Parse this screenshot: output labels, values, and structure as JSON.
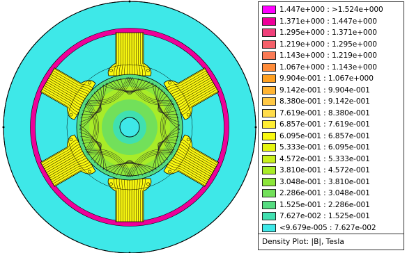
{
  "plot": {
    "bands": [
      {
        "range": "1.447e+000 : >1.524e+000",
        "color": "#ff00ff"
      },
      {
        "range": "1.371e+000 : 1.447e+000",
        "color": "#ee0099"
      },
      {
        "range": "1.295e+000 : 1.371e+000",
        "color": "#f0407a"
      },
      {
        "range": "1.219e+000 : 1.295e+000",
        "color": "#f5606a"
      },
      {
        "range": "1.143e+000 : 1.219e+000",
        "color": "#fa7a55"
      },
      {
        "range": "1.067e+000 : 1.143e+000",
        "color": "#ff8c3a"
      },
      {
        "range": "9.904e-001 : 1.067e+000",
        "color": "#ffa020"
      },
      {
        "range": "9.142e-001 : 9.904e-001",
        "color": "#ffb433"
      },
      {
        "range": "8.380e-001 : 9.142e-001",
        "color": "#ffc845"
      },
      {
        "range": "7.619e-001 : 8.380e-001",
        "color": "#ffdc4a"
      },
      {
        "range": "6.857e-001 : 7.619e-001",
        "color": "#ffee33"
      },
      {
        "range": "6.095e-001 : 6.857e-001",
        "color": "#fafa10"
      },
      {
        "range": "5.333e-001 : 6.095e-001",
        "color": "#e5f510"
      },
      {
        "range": "4.572e-001 : 5.333e-001",
        "color": "#c8f01c"
      },
      {
        "range": "3.810e-001 : 4.572e-001",
        "color": "#a8ec28"
      },
      {
        "range": "3.048e-001 : 3.810e-001",
        "color": "#8ce63a"
      },
      {
        "range": "2.286e-001 : 3.048e-001",
        "color": "#72e05a"
      },
      {
        "range": "1.525e-001 : 2.286e-001",
        "color": "#55dc80"
      },
      {
        "range": "7.627e-002 : 1.525e-001",
        "color": "#40e0b0"
      },
      {
        "range": "<9.679e-005 : 7.627e-002",
        "color": "#3ee8e8"
      }
    ],
    "caption": "Density Plot: |B|, Tesla"
  }
}
